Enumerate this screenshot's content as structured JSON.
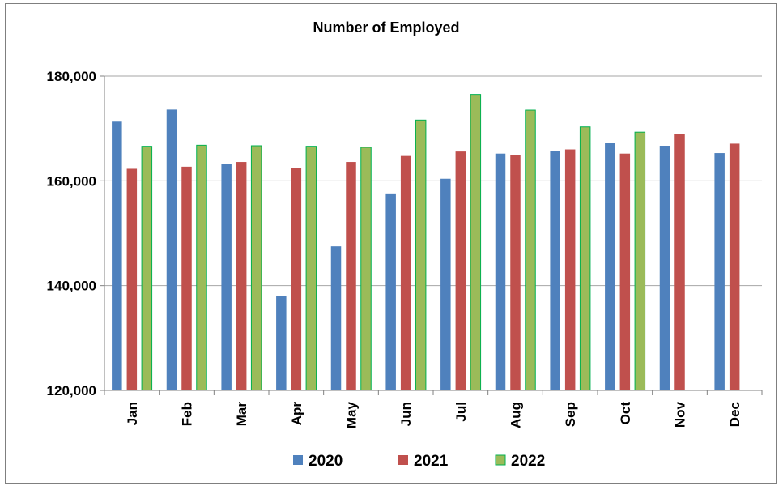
{
  "chart_data": {
    "type": "bar",
    "title": "Number of Employed",
    "xlabel": "",
    "ylabel": "",
    "categories": [
      "Jan",
      "Feb",
      "Mar",
      "Apr",
      "May",
      "Jun",
      "Jul",
      "Aug",
      "Sep",
      "Oct",
      "Nov",
      "Dec"
    ],
    "series": [
      {
        "name": "2020",
        "color": "#4f81bd",
        "values": [
          171300,
          173600,
          163200,
          138000,
          147500,
          157600,
          160400,
          165200,
          165700,
          167300,
          166700,
          165300
        ]
      },
      {
        "name": "2021",
        "color": "#c0504d",
        "values": [
          162300,
          162700,
          163600,
          162500,
          163600,
          164900,
          165600,
          165000,
          166000,
          165200,
          168900,
          167100
        ]
      },
      {
        "name": "2022",
        "color": "#9bbb59",
        "values": [
          166600,
          166800,
          166700,
          166600,
          166400,
          171600,
          176500,
          173500,
          170300,
          169300,
          null,
          null
        ]
      }
    ],
    "ylim": [
      120000,
      180000
    ],
    "yticks": [
      120000,
      140000,
      160000,
      180000
    ],
    "ytick_labels": [
      "120,000",
      "140,000",
      "160,000",
      "180,000"
    ],
    "grid": true,
    "legend": "bottom"
  }
}
